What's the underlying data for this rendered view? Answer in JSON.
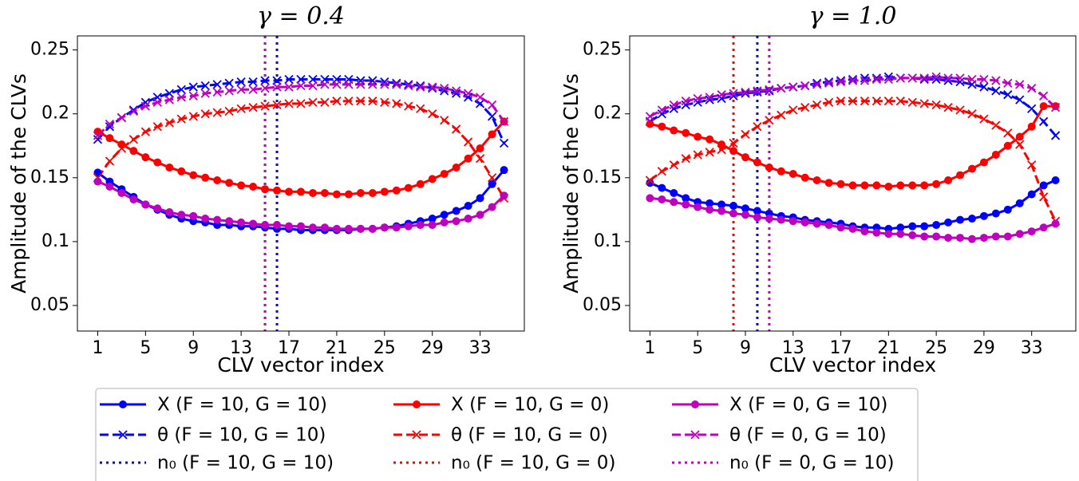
{
  "chart_data": [
    {
      "type": "line",
      "title": "γ = 0.4",
      "x_label": "CLV vector index",
      "y_label": "Amplitude of the CLVs",
      "x": [
        1,
        2,
        3,
        4,
        5,
        6,
        7,
        8,
        9,
        10,
        11,
        12,
        13,
        14,
        15,
        16,
        17,
        18,
        19,
        20,
        21,
        22,
        23,
        24,
        25,
        26,
        27,
        28,
        29,
        30,
        31,
        32,
        33,
        34,
        35
      ],
      "xlim": [
        -0.7,
        36.7
      ],
      "xticks": [
        1,
        5,
        9,
        13,
        17,
        21,
        25,
        29,
        33
      ],
      "ylim": [
        0.03,
        0.261
      ],
      "yticks": [
        0.05,
        0.1,
        0.15,
        0.2,
        0.25
      ],
      "series": [
        {
          "name": "X (F = 10, G = 10)",
          "color": "#0000ff",
          "style": "solid",
          "marker": "o",
          "values": [
            0.154,
            0.147,
            0.141,
            0.135,
            0.129,
            0.125,
            0.121,
            0.118,
            0.116,
            0.115,
            0.113,
            0.113,
            0.112,
            0.112,
            0.111,
            0.11,
            0.11,
            0.109,
            0.109,
            0.109,
            0.109,
            0.109,
            0.11,
            0.11,
            0.111,
            0.112,
            0.114,
            0.116,
            0.118,
            0.121,
            0.124,
            0.128,
            0.134,
            0.145,
            0.156
          ]
        },
        {
          "name": "θ (F = 10, G = 10)",
          "color": "#0000ff",
          "style": "dashed",
          "marker": "x",
          "values": [
            0.18,
            0.19,
            0.197,
            0.203,
            0.209,
            0.213,
            0.216,
            0.219,
            0.221,
            0.222,
            0.223,
            0.224,
            0.225,
            0.225,
            0.226,
            0.226,
            0.227,
            0.227,
            0.227,
            0.227,
            0.227,
            0.227,
            0.226,
            0.226,
            0.225,
            0.224,
            0.223,
            0.222,
            0.22,
            0.218,
            0.216,
            0.213,
            0.208,
            0.198,
            0.177
          ]
        },
        {
          "name": "X (F = 10, G = 0)",
          "color": "#ff0000",
          "style": "solid",
          "marker": "o",
          "values": [
            0.186,
            0.181,
            0.176,
            0.171,
            0.166,
            0.162,
            0.158,
            0.155,
            0.152,
            0.15,
            0.148,
            0.146,
            0.144,
            0.143,
            0.141,
            0.14,
            0.139,
            0.139,
            0.138,
            0.138,
            0.137,
            0.137,
            0.138,
            0.138,
            0.139,
            0.14,
            0.142,
            0.145,
            0.149,
            0.153,
            0.158,
            0.165,
            0.173,
            0.184,
            0.194
          ]
        },
        {
          "name": "θ (F = 10, G = 0)",
          "color": "#ff0000",
          "style": "dashed",
          "marker": "x",
          "values": [
            0.15,
            0.163,
            0.173,
            0.18,
            0.186,
            0.19,
            0.193,
            0.196,
            0.198,
            0.2,
            0.201,
            0.202,
            0.204,
            0.205,
            0.206,
            0.207,
            0.208,
            0.208,
            0.209,
            0.209,
            0.21,
            0.21,
            0.21,
            0.21,
            0.209,
            0.208,
            0.206,
            0.204,
            0.2,
            0.195,
            0.188,
            0.178,
            0.165,
            0.15,
            0.134
          ]
        },
        {
          "name": "X (F = 0, G = 10)",
          "color": "#bf00bf",
          "style": "solid",
          "marker": "o",
          "values": [
            0.147,
            0.143,
            0.138,
            0.133,
            0.129,
            0.126,
            0.123,
            0.121,
            0.12,
            0.118,
            0.117,
            0.116,
            0.115,
            0.114,
            0.113,
            0.113,
            0.112,
            0.112,
            0.111,
            0.111,
            0.11,
            0.11,
            0.11,
            0.11,
            0.111,
            0.111,
            0.112,
            0.113,
            0.113,
            0.115,
            0.116,
            0.118,
            0.121,
            0.127,
            0.136
          ]
        },
        {
          "name": "θ (F = 0, G = 10)",
          "color": "#bf00bf",
          "style": "dashed",
          "marker": "x",
          "values": [
            0.183,
            0.192,
            0.197,
            0.202,
            0.206,
            0.209,
            0.211,
            0.213,
            0.214,
            0.216,
            0.217,
            0.218,
            0.219,
            0.219,
            0.22,
            0.221,
            0.221,
            0.222,
            0.222,
            0.223,
            0.223,
            0.223,
            0.223,
            0.223,
            0.223,
            0.223,
            0.222,
            0.221,
            0.221,
            0.22,
            0.218,
            0.216,
            0.213,
            0.207,
            0.194
          ]
        }
      ],
      "vlines": [
        {
          "name": "n₀ (F = 10, G = 10)",
          "color": "#0000ff",
          "x": 16
        },
        {
          "name": "n₀ (F = 10, G = 0)",
          "color": "#ff0000",
          "x": 15
        },
        {
          "name": "n₀ (F = 0, G = 10)",
          "color": "#bf00bf",
          "x": 15
        }
      ]
    },
    {
      "type": "line",
      "title": "γ = 1.0",
      "x_label": "CLV vector index",
      "y_label": "Amplitude of the CLVs",
      "x": [
        1,
        2,
        3,
        4,
        5,
        6,
        7,
        8,
        9,
        10,
        11,
        12,
        13,
        14,
        15,
        16,
        17,
        18,
        19,
        20,
        21,
        22,
        23,
        24,
        25,
        26,
        27,
        28,
        29,
        30,
        31,
        32,
        33,
        34,
        35
      ],
      "xlim": [
        -0.7,
        36.7
      ],
      "xticks": [
        1,
        5,
        9,
        13,
        17,
        21,
        25,
        29,
        33
      ],
      "ylim": [
        0.03,
        0.261
      ],
      "yticks": [
        0.05,
        0.1,
        0.15,
        0.2,
        0.25
      ],
      "series": [
        {
          "color": "#0000ff",
          "style": "solid",
          "marker": "o",
          "values": [
            0.146,
            0.142,
            0.138,
            0.134,
            0.131,
            0.13,
            0.129,
            0.128,
            0.126,
            0.124,
            0.122,
            0.12,
            0.119,
            0.117,
            0.116,
            0.115,
            0.114,
            0.112,
            0.111,
            0.111,
            0.11,
            0.111,
            0.112,
            0.112,
            0.113,
            0.115,
            0.117,
            0.118,
            0.12,
            0.122,
            0.125,
            0.13,
            0.137,
            0.144,
            0.148
          ]
        },
        {
          "color": "#0000ff",
          "style": "dashed",
          "marker": "x",
          "values": [
            0.194,
            0.2,
            0.204,
            0.207,
            0.209,
            0.211,
            0.212,
            0.214,
            0.216,
            0.217,
            0.218,
            0.22,
            0.221,
            0.222,
            0.224,
            0.225,
            0.226,
            0.227,
            0.228,
            0.228,
            0.229,
            0.228,
            0.228,
            0.227,
            0.227,
            0.226,
            0.225,
            0.223,
            0.221,
            0.218,
            0.215,
            0.211,
            0.204,
            0.194,
            0.183
          ]
        },
        {
          "color": "#ff0000",
          "style": "solid",
          "marker": "o",
          "values": [
            0.192,
            0.19,
            0.187,
            0.185,
            0.182,
            0.18,
            0.176,
            0.171,
            0.166,
            0.162,
            0.158,
            0.155,
            0.153,
            0.15,
            0.148,
            0.146,
            0.145,
            0.144,
            0.144,
            0.144,
            0.143,
            0.144,
            0.144,
            0.144,
            0.145,
            0.148,
            0.152,
            0.157,
            0.162,
            0.168,
            0.175,
            0.182,
            0.19,
            0.206,
            0.206
          ]
        },
        {
          "color": "#ff0000",
          "style": "dashed",
          "marker": "x",
          "values": [
            0.148,
            0.155,
            0.16,
            0.165,
            0.168,
            0.17,
            0.172,
            0.177,
            0.184,
            0.19,
            0.195,
            0.199,
            0.203,
            0.205,
            0.207,
            0.209,
            0.21,
            0.21,
            0.21,
            0.21,
            0.21,
            0.21,
            0.209,
            0.208,
            0.207,
            0.205,
            0.203,
            0.2,
            0.196,
            0.191,
            0.185,
            0.176,
            0.16,
            0.135,
            0.116
          ]
        },
        {
          "color": "#bf00bf",
          "style": "solid",
          "marker": "o",
          "values": [
            0.134,
            0.133,
            0.131,
            0.129,
            0.127,
            0.125,
            0.124,
            0.122,
            0.121,
            0.119,
            0.118,
            0.117,
            0.116,
            0.115,
            0.114,
            0.113,
            0.111,
            0.11,
            0.108,
            0.107,
            0.106,
            0.106,
            0.105,
            0.104,
            0.104,
            0.103,
            0.103,
            0.102,
            0.103,
            0.104,
            0.104,
            0.106,
            0.108,
            0.111,
            0.114
          ]
        },
        {
          "color": "#bf00bf",
          "style": "dashed",
          "marker": "x",
          "values": [
            0.198,
            0.203,
            0.207,
            0.21,
            0.212,
            0.213,
            0.215,
            0.216,
            0.217,
            0.218,
            0.219,
            0.22,
            0.221,
            0.222,
            0.223,
            0.224,
            0.225,
            0.226,
            0.226,
            0.227,
            0.227,
            0.228,
            0.228,
            0.228,
            0.229,
            0.228,
            0.228,
            0.227,
            0.227,
            0.226,
            0.224,
            0.223,
            0.22,
            0.214,
            0.205
          ]
        }
      ],
      "vlines": [
        {
          "color": "#0000ff",
          "x": 10
        },
        {
          "color": "#ff0000",
          "x": 8
        },
        {
          "color": "#bf00bf",
          "x": 11
        }
      ]
    }
  ]
}
